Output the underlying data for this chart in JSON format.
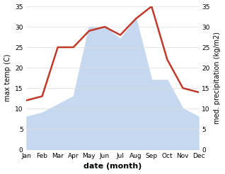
{
  "months": [
    "Jan",
    "Feb",
    "Mar",
    "Apr",
    "May",
    "Jun",
    "Jul",
    "Aug",
    "Sep",
    "Oct",
    "Nov",
    "Dec"
  ],
  "temp": [
    12,
    13,
    25,
    25,
    29,
    30,
    28,
    32,
    35,
    22,
    15,
    14
  ],
  "precip": [
    8,
    9,
    11,
    13,
    30,
    30,
    27,
    32,
    17,
    17,
    10,
    8
  ],
  "temp_color": "#c0392b",
  "precip_color": "#c5d8f0",
  "temp_ylim": [
    0,
    35
  ],
  "precip_ylim": [
    0,
    35
  ],
  "ylabel_left": "max temp (C)",
  "ylabel_right": "med. precipitation (kg/m2)",
  "xlabel": "date (month)",
  "bg_color": "#ffffff",
  "plot_bg": "#ffffff",
  "axis_fontsize": 7,
  "tick_fontsize": 6.5,
  "xlabel_fontsize": 8
}
